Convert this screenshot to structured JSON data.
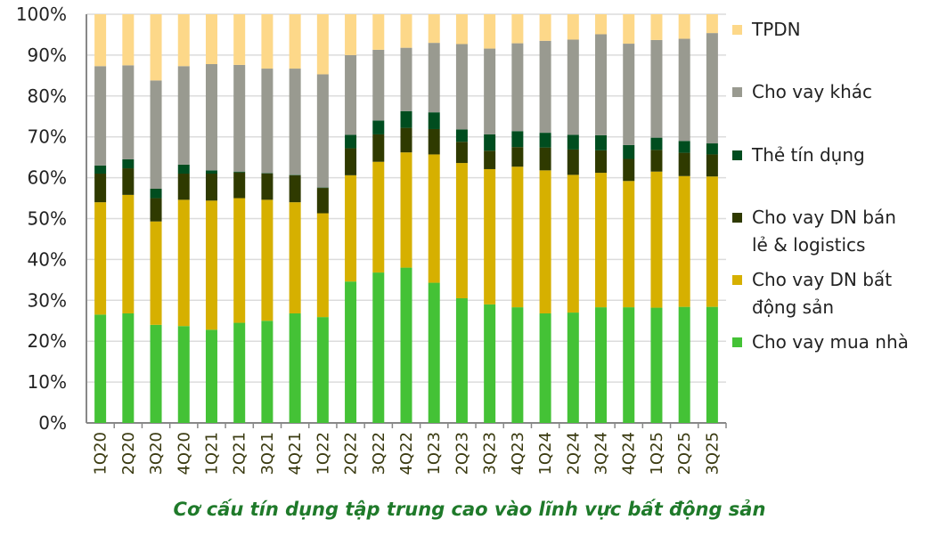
{
  "chart_data": {
    "type": "bar",
    "stacked": true,
    "title": "Cơ cấu tín dụng tập trung cao vào lĩnh vực bất động sản",
    "xlabel": "",
    "ylabel": "",
    "ylim": [
      0,
      100
    ],
    "yticks": [
      "0%",
      "10%",
      "20%",
      "30%",
      "40%",
      "50%",
      "60%",
      "70%",
      "80%",
      "90%",
      "100%"
    ],
    "grid": true,
    "legend_position": "right",
    "categories": [
      "1Q20",
      "2Q20",
      "3Q20",
      "4Q20",
      "1Q21",
      "2Q21",
      "3Q21",
      "4Q21",
      "1Q22",
      "2Q22",
      "3Q22",
      "4Q22",
      "1Q23",
      "2Q23",
      "3Q23",
      "4Q23",
      "1Q24",
      "2Q24",
      "3Q24",
      "4Q24",
      "1Q25",
      "2Q25",
      "3Q25"
    ],
    "series": [
      {
        "name": "Cho vay mua nhà",
        "color": "#44c236",
        "values": [
          26.5,
          26.8,
          24,
          23.7,
          22.8,
          24.5,
          25,
          26.8,
          25.9,
          34.6,
          36.8,
          38,
          34.3,
          30.5,
          29,
          28.3,
          26.8,
          27,
          28.3,
          28.3,
          28.2,
          28.4,
          28.4
        ]
      },
      {
        "name": "Cho vay DN bất động sản",
        "color": "#d6b000",
        "values": [
          27.5,
          29,
          25.3,
          30.9,
          31.6,
          30.5,
          29.6,
          27.2,
          25.4,
          26,
          27.1,
          28.2,
          31.4,
          33.1,
          33.1,
          34.4,
          35,
          33.7,
          32.9,
          30.9,
          33.3,
          32,
          31.9
        ]
      },
      {
        "name": "Cho vay DN bán lẻ & logistics",
        "color": "#2f3a00",
        "values": [
          7,
          6.5,
          5.7,
          6.4,
          6.6,
          6.3,
          6.4,
          6.6,
          6.2,
          6.6,
          6.7,
          6,
          6.2,
          5.2,
          4.5,
          4.8,
          5.6,
          6.2,
          5.5,
          5.4,
          5.3,
          5.7,
          5.4
        ]
      },
      {
        "name": "Thẻ tín dụng",
        "color": "#004d1f",
        "values": [
          2,
          2.2,
          2.3,
          2.2,
          0.8,
          0.2,
          0.1,
          0.1,
          0.1,
          3.3,
          3.4,
          4.1,
          4.1,
          3,
          4,
          3.9,
          3.6,
          3.6,
          3.7,
          3.4,
          3,
          2.9,
          2.7
        ]
      },
      {
        "name": "Cho vay khác",
        "color": "#999a90",
        "values": [
          24.3,
          23,
          26.5,
          24.1,
          26,
          26.1,
          25.6,
          26,
          27.7,
          19.5,
          17.3,
          15.5,
          17,
          20.9,
          21,
          21.5,
          22.5,
          23.3,
          24.7,
          24.8,
          23.9,
          25,
          27
        ]
      },
      {
        "name": "TPDN",
        "color": "#fdd889",
        "values": [
          12.7,
          12.5,
          16.2,
          12.7,
          12.2,
          12.4,
          13.3,
          13.3,
          14.7,
          10,
          8.7,
          8.2,
          7,
          7.3,
          8.4,
          7.1,
          6.5,
          6.2,
          4.9,
          7.2,
          6.3,
          6,
          4.6
        ]
      }
    ]
  },
  "legend": [
    {
      "label": "TPDN",
      "color": "#fdd889"
    },
    {
      "label": "Cho vay khác",
      "color": "#999a90"
    },
    {
      "label": "Thẻ tín dụng",
      "color": "#004d1f"
    },
    {
      "label": "Cho vay DN bán lẻ & logistics",
      "color": "#2f3a00"
    },
    {
      "label": "Cho vay DN bất động sản",
      "color": "#d6b000"
    },
    {
      "label": "Cho vay mua nhà",
      "color": "#44c236"
    }
  ]
}
